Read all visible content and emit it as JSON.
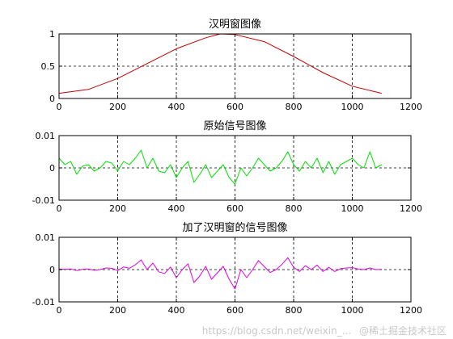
{
  "chart_data": [
    {
      "type": "line",
      "title": "汉明窗图像",
      "xlim": [
        0,
        1200
      ],
      "ylim": [
        0,
        1
      ],
      "xticks": [
        "0",
        "200",
        "400",
        "600",
        "800",
        "1000",
        "1200"
      ],
      "yticks": [
        "0",
        "0.5",
        "1"
      ],
      "grid": true,
      "grid_style": "dashed",
      "series": [
        {
          "color": "#c00000",
          "x": [
            0,
            100,
            200,
            300,
            400,
            500,
            550,
            600,
            700,
            800,
            900,
            1000,
            1100
          ],
          "y": [
            0.08,
            0.14,
            0.31,
            0.54,
            0.77,
            0.94,
            1.0,
            0.99,
            0.88,
            0.65,
            0.4,
            0.19,
            0.08
          ]
        }
      ]
    },
    {
      "type": "line",
      "title": "原始信号图像",
      "xlim": [
        0,
        1200
      ],
      "ylim": [
        -0.01,
        0.01
      ],
      "xticks": [
        "0",
        "200",
        "400",
        "600",
        "800",
        "1000",
        "1200"
      ],
      "yticks": [
        "-0.01",
        "0",
        "0.01"
      ],
      "grid": true,
      "grid_style": "dashed",
      "series": [
        {
          "color": "#00e000",
          "x": [
            0,
            20,
            40,
            60,
            80,
            100,
            120,
            140,
            160,
            180,
            200,
            220,
            240,
            260,
            280,
            300,
            320,
            340,
            360,
            380,
            400,
            420,
            440,
            460,
            480,
            500,
            520,
            540,
            560,
            580,
            600,
            620,
            640,
            660,
            680,
            700,
            720,
            740,
            760,
            780,
            800,
            820,
            840,
            860,
            880,
            900,
            920,
            940,
            960,
            980,
            1000,
            1020,
            1040,
            1060,
            1080,
            1100
          ],
          "y": [
            0.003,
            0.001,
            0.002,
            -0.002,
            0.0005,
            0.001,
            -0.001,
            0.0,
            0.002,
            0.0015,
            -0.001,
            0.002,
            0.001,
            0.003,
            0.0055,
            0.0,
            0.003,
            -0.001,
            -0.0015,
            0.001,
            -0.003,
            0.0,
            0.002,
            -0.0045,
            -0.002,
            0.001,
            -0.003,
            -0.001,
            0.001,
            -0.003,
            -0.005,
            0.0,
            -0.0025,
            0.0,
            0.003,
            0.001,
            -0.001,
            0.0,
            0.002,
            0.005,
            0.001,
            -0.001,
            0.002,
            0.0,
            0.003,
            -0.0015,
            0.002,
            -0.002,
            0.001,
            0.002,
            0.003,
            0.001,
            0.0,
            0.005,
            0.0,
            0.001
          ]
        }
      ]
    },
    {
      "type": "line",
      "title": "加了汉明窗的信号图像",
      "xlim": [
        0,
        1200
      ],
      "ylim": [
        -0.01,
        0.01
      ],
      "xticks": [
        "0",
        "200",
        "400",
        "600",
        "800",
        "1000",
        "1200"
      ],
      "yticks": [
        "-0.01",
        "0",
        "0.01"
      ],
      "grid": true,
      "grid_style": "dashed",
      "series": [
        {
          "color": "#e000e0",
          "x": [
            0,
            20,
            40,
            60,
            80,
            100,
            120,
            140,
            160,
            180,
            200,
            220,
            240,
            260,
            280,
            300,
            320,
            340,
            360,
            380,
            400,
            420,
            440,
            460,
            480,
            500,
            520,
            540,
            560,
            580,
            600,
            620,
            640,
            660,
            680,
            700,
            720,
            740,
            760,
            780,
            800,
            820,
            840,
            860,
            880,
            900,
            920,
            940,
            960,
            980,
            1000,
            1020,
            1040,
            1060,
            1080,
            1100
          ],
          "y": [
            0.0002,
            0.0001,
            0.0002,
            -0.0003,
            0.0001,
            0.0002,
            -0.0002,
            0.0,
            0.0005,
            0.0004,
            -0.0003,
            0.0008,
            0.0004,
            0.0015,
            0.003,
            0.0,
            0.002,
            -0.0007,
            -0.0012,
            0.0008,
            -0.0025,
            0.0,
            0.0018,
            -0.004,
            -0.002,
            0.001,
            -0.003,
            -0.001,
            0.001,
            -0.003,
            -0.006,
            0.0,
            -0.0025,
            0.0,
            0.0028,
            0.0009,
            -0.0009,
            0.0,
            0.0016,
            0.0037,
            0.0007,
            -0.0006,
            0.0012,
            0.0,
            0.0014,
            -0.0006,
            0.0007,
            -0.0006,
            0.0003,
            0.0005,
            0.0006,
            0.0002,
            0.0,
            0.0005,
            0.0,
            0.0001
          ]
        }
      ]
    }
  ],
  "watermark": {
    "left_text": "https://blog.csdn.net/weixin_...",
    "right_text": "@稀土掘金技术社区"
  }
}
